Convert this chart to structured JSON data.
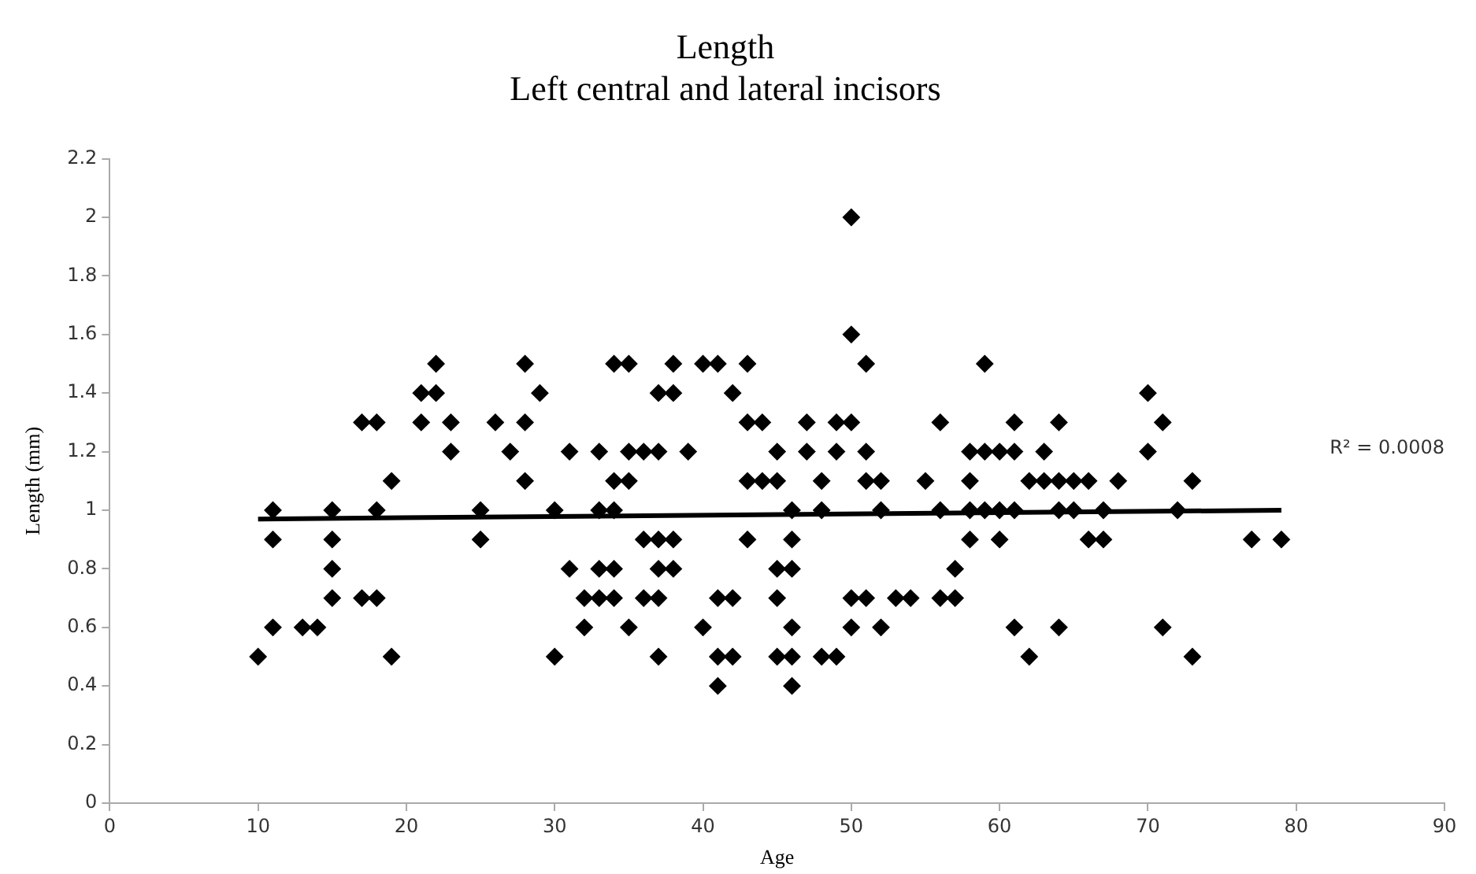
{
  "chart_data": {
    "type": "scatter",
    "title": "Length",
    "subtitle": "Left central and lateral incisors",
    "xlabel": "Age",
    "ylabel": "Length (mm)",
    "xlim": [
      0,
      90
    ],
    "xticks": [
      0,
      10,
      20,
      30,
      40,
      50,
      60,
      70,
      80,
      90
    ],
    "ylim": [
      0,
      2.2
    ],
    "yticks": [
      0,
      0.2,
      0.4,
      0.6,
      0.8,
      1,
      1.2,
      1.4,
      1.6,
      1.8,
      2,
      2.2
    ],
    "grid": false,
    "legend": false,
    "marker": "diamond",
    "annotations": [
      "R² = 0.0008"
    ],
    "series": [
      {
        "type": "scatter",
        "color": "#000000",
        "x": [
          10,
          11,
          11,
          11,
          13,
          14,
          15,
          15,
          15,
          15,
          17,
          17,
          18,
          18,
          18,
          19,
          19,
          21,
          21,
          22,
          22,
          23,
          23,
          25,
          25,
          26,
          27,
          28,
          28,
          28,
          29,
          30,
          30,
          31,
          31,
          32,
          32,
          33,
          33,
          33,
          33,
          34,
          34,
          34,
          34,
          34,
          35,
          35,
          35,
          35,
          36,
          36,
          36,
          37,
          37,
          37,
          37,
          37,
          37,
          38,
          38,
          38,
          38,
          39,
          40,
          40,
          41,
          41,
          41,
          41,
          42,
          42,
          42,
          43,
          43,
          43,
          43,
          44,
          44,
          45,
          45,
          45,
          45,
          45,
          46,
          46,
          46,
          46,
          46,
          46,
          47,
          47,
          48,
          48,
          48,
          49,
          49,
          49,
          50,
          50,
          50,
          50,
          50,
          51,
          51,
          51,
          51,
          52,
          52,
          52,
          53,
          54,
          55,
          56,
          56,
          56,
          57,
          57,
          58,
          58,
          58,
          58,
          59,
          59,
          59,
          60,
          60,
          60,
          61,
          61,
          61,
          61,
          62,
          62,
          63,
          63,
          64,
          64,
          64,
          64,
          65,
          65,
          66,
          66,
          67,
          67,
          68,
          70,
          70,
          71,
          71,
          72,
          73,
          73,
          77,
          79
        ],
        "values": [
          0.5,
          1.0,
          0.9,
          0.6,
          0.6,
          0.6,
          1.0,
          0.9,
          0.8,
          0.7,
          1.3,
          0.7,
          1.3,
          1.0,
          0.7,
          1.1,
          0.5,
          1.4,
          1.3,
          1.5,
          1.4,
          1.3,
          1.2,
          1.0,
          0.9,
          1.3,
          1.2,
          1.5,
          1.3,
          1.1,
          1.4,
          1.0,
          0.5,
          1.2,
          0.8,
          0.7,
          0.6,
          1.2,
          1.0,
          0.8,
          0.7,
          1.5,
          1.1,
          1.0,
          0.8,
          0.7,
          1.5,
          1.2,
          1.1,
          0.6,
          1.2,
          0.9,
          0.7,
          1.4,
          1.2,
          0.9,
          0.8,
          0.7,
          0.5,
          1.5,
          1.4,
          0.9,
          0.8,
          1.2,
          1.5,
          0.6,
          1.5,
          0.7,
          0.5,
          0.4,
          1.4,
          0.7,
          0.5,
          1.5,
          1.3,
          1.1,
          0.9,
          1.3,
          1.1,
          1.2,
          1.1,
          0.8,
          0.7,
          0.5,
          1.0,
          0.9,
          0.8,
          0.6,
          0.5,
          0.4,
          1.3,
          1.2,
          1.1,
          1.0,
          0.5,
          1.3,
          1.2,
          0.5,
          2.0,
          1.6,
          1.3,
          0.7,
          0.6,
          1.5,
          1.2,
          1.1,
          0.7,
          1.1,
          1.0,
          0.6,
          0.7,
          0.7,
          1.1,
          1.3,
          1.0,
          0.7,
          0.8,
          0.7,
          1.2,
          1.1,
          1.0,
          0.9,
          1.5,
          1.2,
          1.0,
          1.2,
          1.0,
          0.9,
          1.3,
          1.2,
          1.0,
          0.6,
          1.1,
          0.5,
          1.2,
          1.1,
          1.3,
          1.1,
          1.0,
          0.6,
          1.1,
          1.0,
          1.1,
          0.9,
          1.0,
          0.9,
          1.1,
          1.4,
          1.2,
          1.3,
          0.6,
          1.0,
          1.1,
          0.5,
          0.9,
          0.9
        ]
      },
      {
        "type": "line",
        "color": "#000000",
        "x": [
          10,
          79
        ],
        "values": [
          0.97,
          1.0
        ],
        "marker": "none",
        "line_style": "solid"
      }
    ]
  }
}
